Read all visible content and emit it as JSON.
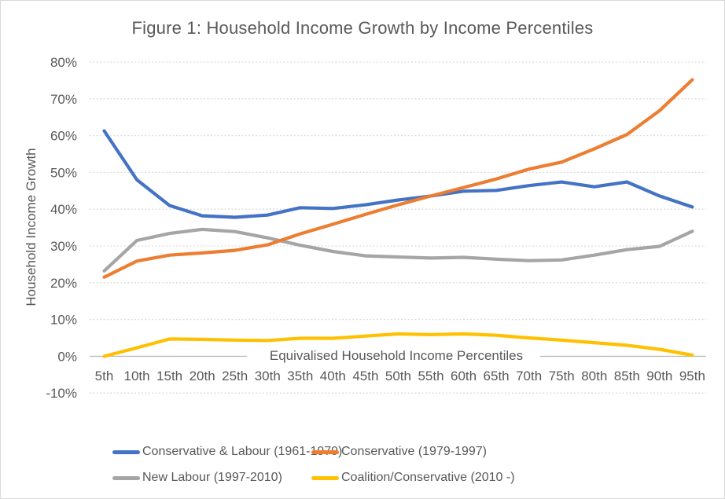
{
  "chart_data": {
    "type": "line",
    "title": "Figure 1: Household Income Growth by Income Percentiles",
    "xlabel": "Equivalised Household Income Percentiles",
    "ylabel": "Household Income Growth",
    "ylim": [
      -10,
      80
    ],
    "grid": "horizontal dotted gridlines, solid axis line at 0%",
    "legend_position": "bottom, two columns",
    "categories": [
      "5th",
      "10th",
      "15th",
      "20th",
      "25th",
      "30th",
      "35th",
      "40th",
      "45th",
      "50th",
      "55th",
      "60th",
      "65th",
      "70th",
      "75th",
      "80th",
      "85th",
      "90th",
      "95th"
    ],
    "yticks": [
      {
        "label": "80%",
        "value": 80
      },
      {
        "label": "70%",
        "value": 70
      },
      {
        "label": "60%",
        "value": 60
      },
      {
        "label": "50%",
        "value": 50
      },
      {
        "label": "40%",
        "value": 40
      },
      {
        "label": "30%",
        "value": 30
      },
      {
        "label": "20%",
        "value": 20
      },
      {
        "label": "10%",
        "value": 10
      },
      {
        "label": "0%",
        "value": 0
      },
      {
        "label": "-10%",
        "value": -10
      }
    ],
    "series": [
      {
        "name": "Conservative & Labour (1961-1979)",
        "color": "#4472C4",
        "values": [
          61.3,
          48,
          41,
          38.2,
          37.8,
          38.4,
          40.4,
          40.2,
          41.2,
          42.5,
          43.6,
          44.9,
          45.1,
          46.4,
          47.4,
          46.1,
          47.4,
          43.6,
          40.6
        ]
      },
      {
        "name": "Conservative (1979-1997)",
        "color": "#ED7D31",
        "values": [
          21.5,
          25.9,
          27.5,
          28.1,
          28.8,
          30.3,
          33.3,
          35.9,
          38.6,
          41.2,
          43.6,
          45.9,
          48.2,
          50.9,
          52.8,
          56.4,
          60.3,
          66.8,
          75.2
        ]
      },
      {
        "name": "New Labour (1997-2010)",
        "color": "#A5A5A5",
        "values": [
          23.2,
          31.5,
          33.4,
          34.5,
          33.9,
          32.2,
          30.2,
          28.5,
          27.3,
          27.0,
          26.7,
          26.9,
          26.4,
          26.0,
          26.2,
          27.5,
          29.0,
          29.9,
          34.0
        ]
      },
      {
        "name": "Coalition/Conservative (2010 -)",
        "color": "#FFC000",
        "values": [
          0,
          2.3,
          4.7,
          4.6,
          4.4,
          4.3,
          4.9,
          4.9,
          5.5,
          6.1,
          5.9,
          6.1,
          5.7,
          5.0,
          4.4,
          3.7,
          3.0,
          1.9,
          0.3
        ]
      }
    ],
    "colors": {
      "text": "#595959",
      "gridline": "#D9D9D9",
      "axis_line": "#BFBFBF",
      "background": "#FFFFFF"
    }
  }
}
